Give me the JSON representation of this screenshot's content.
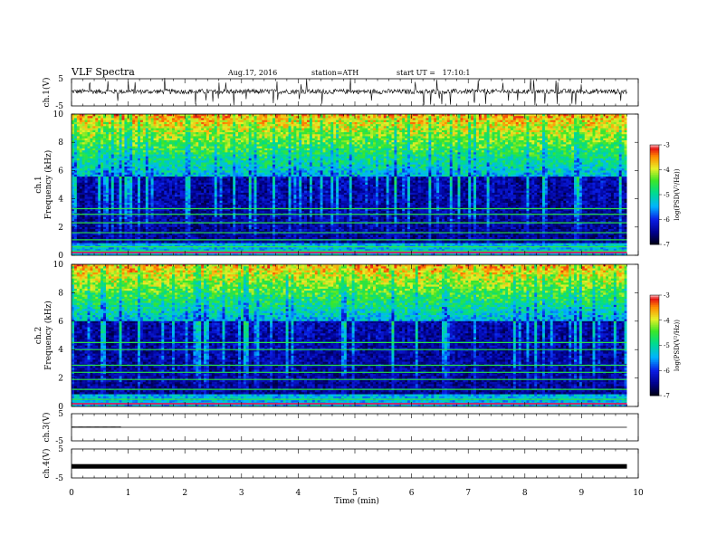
{
  "header": {
    "title": "VLF Spectra",
    "date": "Aug.17, 2016",
    "station": "station=ATH",
    "start": "start UT =   17:10:1"
  },
  "chart_data": [
    {
      "type": "line",
      "id": "ch1-waveform",
      "ylabel": "ch.1(V)",
      "ylim": [
        -5,
        5
      ],
      "yticks": [
        "5",
        "-5"
      ],
      "description_values": {
        "baseline": 0.3
      }
    },
    {
      "type": "heatmap",
      "id": "ch1-spectrogram",
      "ylabel_line1": "ch.1",
      "ylabel_line2": "Frequency (kHz)",
      "ylim": [
        0,
        10
      ],
      "yticks": [
        "0",
        "2",
        "4",
        "6",
        "8",
        "10"
      ],
      "colorbar": {
        "label": "log(PSD(V²/Hz))",
        "range": [
          -7,
          -3
        ],
        "ticks": [
          "-3",
          "-4",
          "-5",
          "-6",
          "-7"
        ]
      },
      "blue_top_khz": 5.5,
      "bands_khz": [
        0.3,
        0.6,
        1.1,
        1.6,
        2.3,
        2.9,
        3.3
      ]
    },
    {
      "type": "heatmap",
      "id": "ch2-spectrogram",
      "ylabel_line1": "ch.2",
      "ylabel_line2": "Frequency (kHz)",
      "ylim": [
        0,
        10
      ],
      "yticks": [
        "0",
        "2",
        "4",
        "6",
        "8",
        "10"
      ],
      "colorbar": {
        "label": "log(PSD(V²/Hz))",
        "range": [
          -7,
          -3
        ],
        "ticks": [
          "-3",
          "-4",
          "-5",
          "-6",
          "-7"
        ]
      },
      "blue_top_khz": 6.0,
      "bands_khz": [
        0.5,
        1.2,
        1.9,
        2.4,
        2.9,
        4.0,
        4.5
      ]
    },
    {
      "type": "line",
      "id": "ch3-waveform",
      "ylabel": "ch.3(V)",
      "ylim": [
        -5,
        5
      ],
      "yticks": [
        "5",
        "-5"
      ],
      "description_values": {
        "baseline": 0
      }
    },
    {
      "type": "line",
      "id": "ch4-waveform",
      "ylabel": "ch.4(V)",
      "ylim": [
        -5,
        5
      ],
      "yticks": [
        "5",
        "-5"
      ],
      "description_values": {
        "baseline": -1
      }
    }
  ],
  "xaxis": {
    "label": "Time (min)",
    "range": [
      0,
      10
    ],
    "ticks": [
      "0",
      "1",
      "2",
      "3",
      "4",
      "5",
      "6",
      "7",
      "8",
      "9",
      "10"
    ],
    "data_end_min": 9.8
  }
}
